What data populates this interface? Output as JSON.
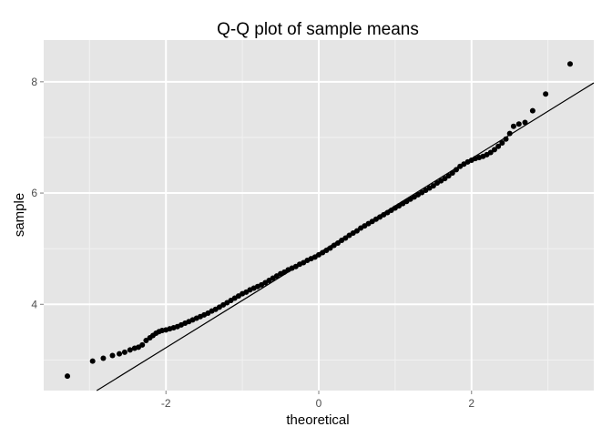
{
  "chart_data": {
    "type": "scatter",
    "title": "Q-Q plot of sample means",
    "xlabel": "theoretical",
    "ylabel": "sample",
    "xlim": [
      -3.6,
      3.6
    ],
    "ylim": [
      2.45,
      8.75
    ],
    "x_ticks": [
      -2,
      0,
      2
    ],
    "x_tick_labels": [
      "-2",
      "0",
      "2"
    ],
    "y_ticks": [
      4,
      6,
      8
    ],
    "y_tick_labels": [
      "4",
      "6",
      "8"
    ],
    "grid": true,
    "legend": "none",
    "colors": {
      "panel": "#e5e5e5",
      "grid_major": "#ffffff",
      "grid_minor": "#f2f2f2",
      "points": "#000000",
      "reference_line": "#000000"
    },
    "reference_line": {
      "intercept": 4.92,
      "slope": 0.85
    },
    "points": [
      [
        -3.29,
        2.71
      ],
      [
        -2.96,
        2.98
      ],
      [
        -2.82,
        3.03
      ],
      [
        -2.7,
        3.08
      ],
      [
        -2.61,
        3.11
      ],
      [
        -2.54,
        3.14
      ],
      [
        -2.47,
        3.18
      ],
      [
        -2.41,
        3.21
      ],
      [
        -2.36,
        3.23
      ],
      [
        -2.31,
        3.27
      ],
      [
        -2.26,
        3.35
      ],
      [
        -2.21,
        3.4
      ],
      [
        -2.17,
        3.44
      ],
      [
        -2.13,
        3.48
      ],
      [
        -2.09,
        3.51
      ],
      [
        -2.05,
        3.53
      ],
      [
        -2.0,
        3.54
      ],
      [
        -1.95,
        3.56
      ],
      [
        -1.9,
        3.58
      ],
      [
        -1.85,
        3.6
      ],
      [
        -1.8,
        3.63
      ],
      [
        -1.75,
        3.66
      ],
      [
        -1.7,
        3.69
      ],
      [
        -1.65,
        3.72
      ],
      [
        -1.6,
        3.75
      ],
      [
        -1.55,
        3.78
      ],
      [
        -1.5,
        3.81
      ],
      [
        -1.45,
        3.84
      ],
      [
        -1.4,
        3.88
      ],
      [
        -1.35,
        3.91
      ],
      [
        -1.3,
        3.95
      ],
      [
        -1.25,
        3.99
      ],
      [
        -1.2,
        4.03
      ],
      [
        -1.15,
        4.07
      ],
      [
        -1.1,
        4.11
      ],
      [
        -1.05,
        4.15
      ],
      [
        -1.0,
        4.19
      ],
      [
        -0.95,
        4.22
      ],
      [
        -0.9,
        4.26
      ],
      [
        -0.85,
        4.29
      ],
      [
        -0.8,
        4.32
      ],
      [
        -0.75,
        4.35
      ],
      [
        -0.7,
        4.39
      ],
      [
        -0.65,
        4.43
      ],
      [
        -0.6,
        4.47
      ],
      [
        -0.55,
        4.51
      ],
      [
        -0.5,
        4.55
      ],
      [
        -0.45,
        4.58
      ],
      [
        -0.4,
        4.62
      ],
      [
        -0.35,
        4.65
      ],
      [
        -0.3,
        4.68
      ],
      [
        -0.25,
        4.72
      ],
      [
        -0.2,
        4.75
      ],
      [
        -0.15,
        4.79
      ],
      [
        -0.1,
        4.82
      ],
      [
        -0.05,
        4.85
      ],
      [
        0.0,
        4.89
      ],
      [
        0.05,
        4.93
      ],
      [
        0.1,
        4.97
      ],
      [
        0.15,
        5.01
      ],
      [
        0.2,
        5.06
      ],
      [
        0.25,
        5.1
      ],
      [
        0.3,
        5.15
      ],
      [
        0.35,
        5.19
      ],
      [
        0.4,
        5.24
      ],
      [
        0.45,
        5.28
      ],
      [
        0.5,
        5.32
      ],
      [
        0.55,
        5.37
      ],
      [
        0.6,
        5.41
      ],
      [
        0.65,
        5.45
      ],
      [
        0.7,
        5.49
      ],
      [
        0.75,
        5.53
      ],
      [
        0.8,
        5.57
      ],
      [
        0.85,
        5.61
      ],
      [
        0.9,
        5.65
      ],
      [
        0.95,
        5.69
      ],
      [
        1.0,
        5.73
      ],
      [
        1.05,
        5.77
      ],
      [
        1.1,
        5.81
      ],
      [
        1.15,
        5.85
      ],
      [
        1.2,
        5.89
      ],
      [
        1.25,
        5.93
      ],
      [
        1.3,
        5.97
      ],
      [
        1.35,
        6.01
      ],
      [
        1.4,
        6.05
      ],
      [
        1.45,
        6.09
      ],
      [
        1.5,
        6.13
      ],
      [
        1.55,
        6.18
      ],
      [
        1.6,
        6.22
      ],
      [
        1.65,
        6.26
      ],
      [
        1.7,
        6.31
      ],
      [
        1.75,
        6.36
      ],
      [
        1.8,
        6.42
      ],
      [
        1.85,
        6.48
      ],
      [
        1.9,
        6.52
      ],
      [
        1.95,
        6.56
      ],
      [
        2.0,
        6.59
      ],
      [
        2.05,
        6.62
      ],
      [
        2.1,
        6.64
      ],
      [
        2.15,
        6.66
      ],
      [
        2.2,
        6.69
      ],
      [
        2.25,
        6.73
      ],
      [
        2.3,
        6.78
      ],
      [
        2.35,
        6.84
      ],
      [
        2.4,
        6.9
      ],
      [
        2.45,
        6.97
      ],
      [
        2.5,
        7.07
      ],
      [
        2.55,
        7.2
      ],
      [
        2.62,
        7.24
      ],
      [
        2.7,
        7.27
      ],
      [
        2.8,
        7.48
      ],
      [
        2.97,
        7.78
      ],
      [
        3.29,
        8.32
      ]
    ]
  }
}
